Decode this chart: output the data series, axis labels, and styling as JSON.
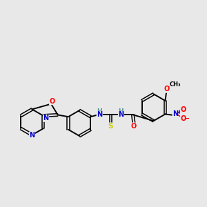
{
  "background_color": "#e8e8e8",
  "bond_color": "#000000",
  "atom_colors": {
    "N": "#0000cc",
    "O": "#ff0000",
    "S": "#cccc00",
    "C": "#000000",
    "H": "#4a9090"
  },
  "bg": "#e8e8e8"
}
